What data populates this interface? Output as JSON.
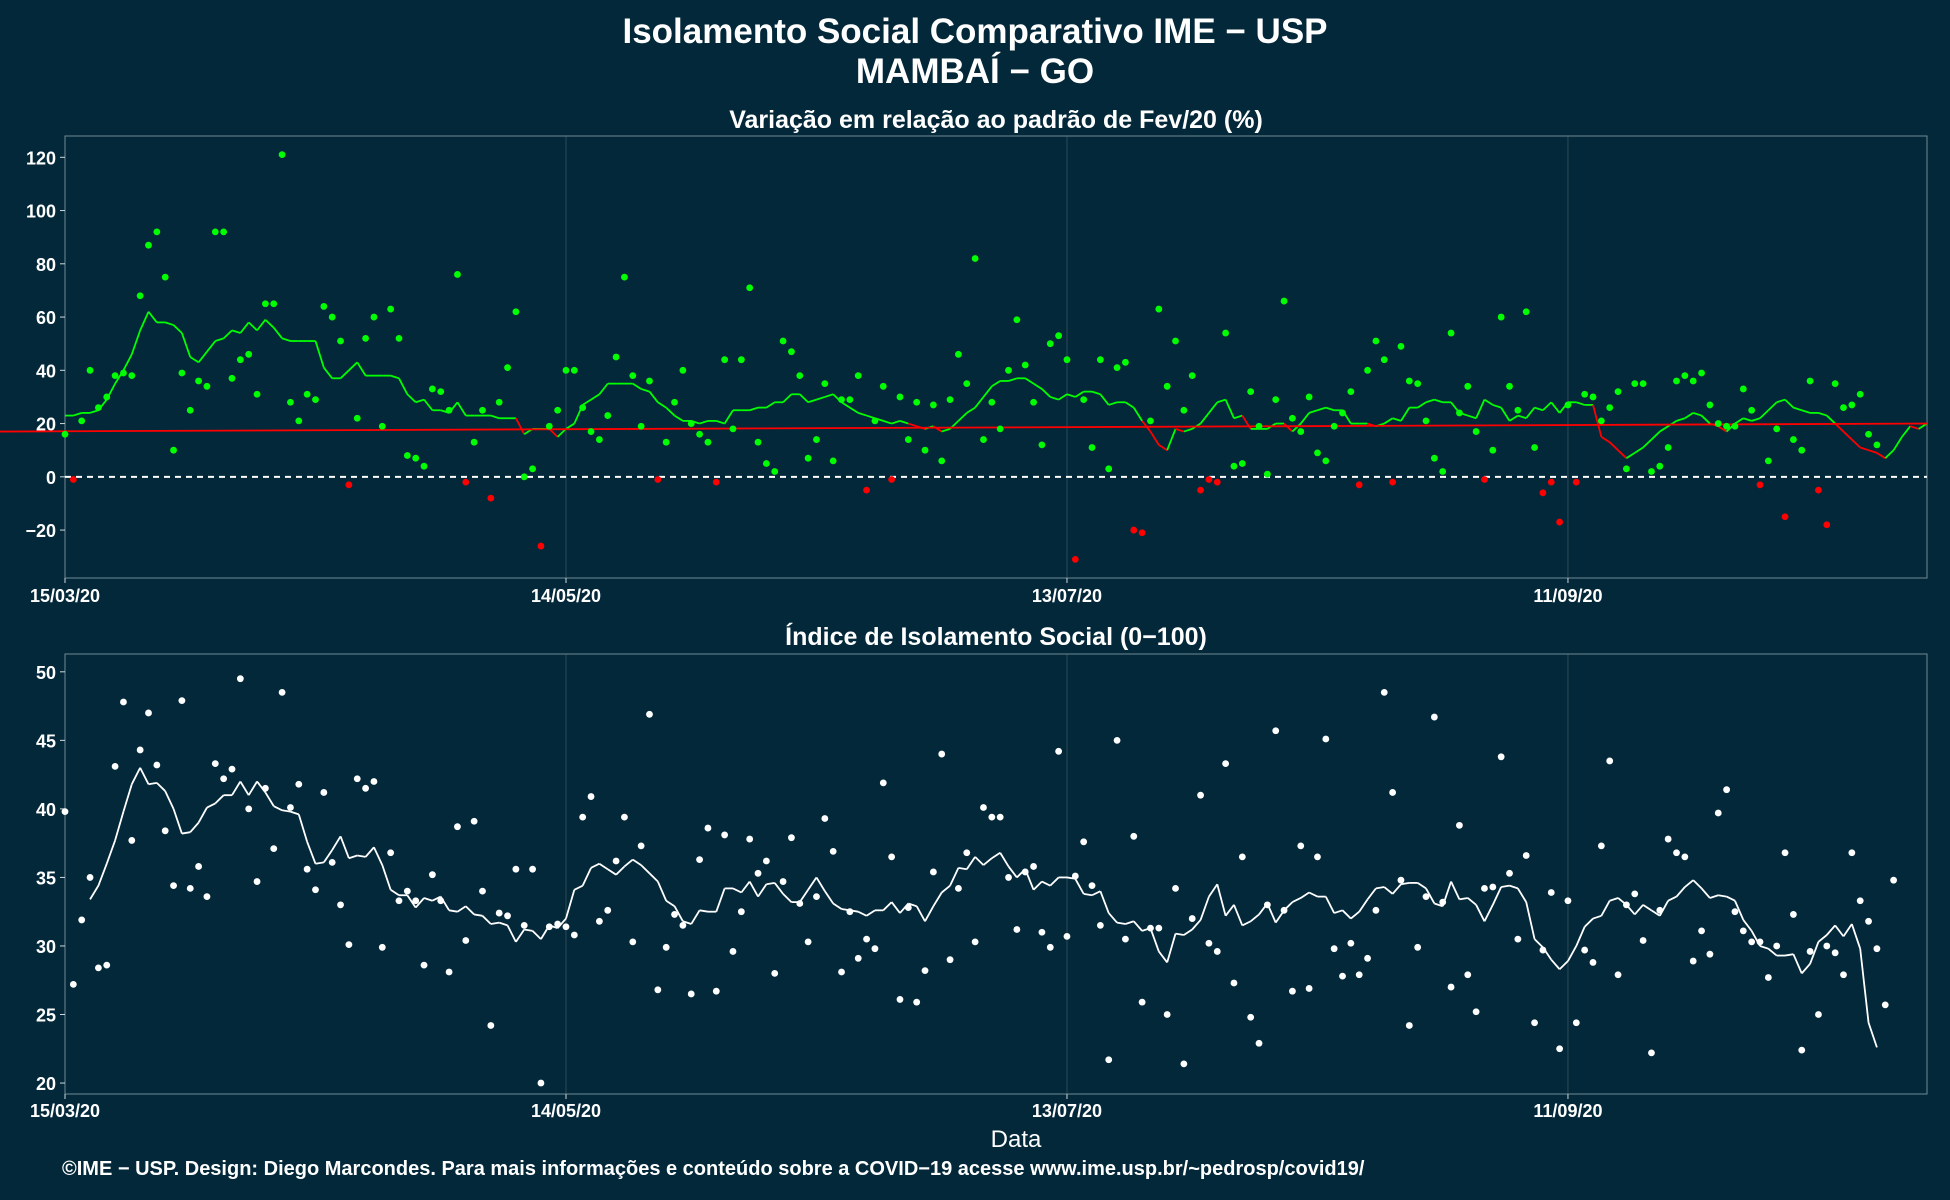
{
  "header": {
    "title_line1": "Isolamento Social Comparativo IME − USP",
    "title_line2": "MAMBAÍ − GO"
  },
  "footer": {
    "text": "©IME − USP. Design: Diego Marcondes. Para mais informações e conteúdo sobre a COVID−19 acesse www.ime.usp.br/~pedrosp/covid19/"
  },
  "colors": {
    "background": "#03283a",
    "positive": "#00ff00",
    "negative": "#ff0000",
    "index": "#ffffff",
    "grid": "#2c4a56"
  },
  "chart_data": [
    {
      "type": "scatter",
      "subtitle": "Variação em relação ao padrão de Fev/20 (%)",
      "xlabel": "",
      "x_ticks": [
        "15/03/20",
        "14/05/20",
        "13/07/20",
        "11/09/20"
      ],
      "x_tick_days": [
        0,
        60,
        120,
        180
      ],
      "xlim_days": [
        0,
        223
      ],
      "y_ticks": [
        120,
        100,
        80,
        60,
        40,
        20,
        0,
        -20
      ],
      "ylim": [
        -38,
        128
      ],
      "reference_line": 0,
      "point_days": [
        0,
        1,
        2,
        3,
        4,
        5,
        6,
        7,
        8,
        9,
        10,
        11,
        12,
        13,
        14,
        15,
        16,
        17,
        18,
        19,
        20,
        21,
        22,
        23,
        24,
        25,
        26,
        27,
        28,
        29,
        30,
        31,
        32,
        33,
        34,
        35,
        36,
        37,
        38,
        39,
        40,
        41,
        42,
        43,
        44,
        45,
        46,
        47,
        48,
        49,
        50,
        51,
        52,
        53,
        54,
        55,
        56,
        57,
        58,
        59,
        60,
        61,
        62,
        63,
        64,
        65,
        66,
        67,
        68,
        69,
        70,
        71,
        72,
        73,
        74,
        75,
        76,
        77,
        78,
        79,
        80,
        81,
        82,
        83,
        84,
        85,
        86,
        87,
        88,
        89,
        90,
        91,
        92,
        93,
        94,
        95,
        96,
        97,
        98,
        99,
        100,
        101,
        102,
        103,
        104,
        105,
        106,
        107,
        108,
        109,
        110,
        111,
        112,
        113,
        114,
        115,
        116,
        117,
        118,
        119,
        120,
        121,
        122,
        123,
        124,
        125,
        126,
        127,
        128,
        129,
        130,
        131,
        132,
        133,
        134,
        135,
        136,
        137,
        138,
        139,
        140,
        141,
        142,
        143,
        144,
        145,
        146,
        147,
        148,
        149,
        150,
        151,
        152,
        153,
        154,
        155,
        156,
        157,
        158,
        159,
        160,
        161,
        162,
        163,
        164,
        165,
        166,
        167,
        168,
        169,
        170,
        171,
        172,
        173,
        174,
        175,
        176,
        177,
        178,
        179,
        180,
        181,
        182,
        183,
        184,
        185,
        186,
        187,
        188,
        189,
        190,
        191,
        192,
        193,
        194,
        195,
        196,
        197,
        198,
        199,
        200,
        201,
        202,
        203,
        204,
        205,
        206,
        207,
        208,
        209,
        210,
        211,
        212,
        213,
        214,
        215,
        216,
        217,
        218,
        219,
        220,
        221,
        222,
        223
      ],
      "point_values": [
        16,
        -1,
        21,
        40,
        26,
        30,
        38,
        39,
        38,
        68,
        87,
        92,
        75,
        10,
        39,
        25,
        36,
        34,
        92,
        92,
        37,
        44,
        46,
        31,
        65,
        65,
        121,
        28,
        21,
        31,
        29,
        64,
        60,
        51,
        -3,
        22,
        52,
        60,
        19,
        63,
        52,
        8,
        7,
        4,
        33,
        32,
        25,
        76,
        -2,
        13,
        25,
        -8,
        28,
        41,
        62,
        0,
        3,
        -26,
        19,
        25,
        40,
        40,
        26,
        17,
        14,
        23,
        45,
        75,
        38,
        19,
        36,
        -1,
        13,
        28,
        40,
        20,
        16,
        13,
        -2,
        44,
        18,
        44,
        71,
        13,
        5,
        2,
        51,
        47,
        38,
        7,
        14,
        35,
        6,
        29,
        29,
        38,
        -5,
        21,
        34,
        -1,
        30,
        14,
        28,
        10,
        27,
        6,
        29,
        46,
        35,
        82,
        14,
        28,
        18,
        40,
        59,
        42,
        28,
        12,
        50,
        53,
        44,
        -31,
        29,
        11,
        44,
        3,
        41,
        43,
        -20,
        -21,
        21,
        63,
        34,
        51,
        25,
        38,
        -5,
        -1,
        -2,
        54,
        4,
        5,
        32,
        19,
        1,
        29,
        66,
        22,
        17,
        30,
        9,
        6,
        19,
        24,
        32,
        -3,
        40,
        51,
        44,
        -2,
        49,
        36,
        35,
        21,
        7,
        2,
        54,
        24,
        34,
        17,
        -1,
        10,
        60,
        34,
        25,
        62,
        11,
        -6,
        -2,
        -17,
        27,
        -2,
        31,
        30,
        21,
        26,
        32,
        3,
        35,
        35,
        2,
        4,
        11,
        36,
        38,
        36,
        39,
        27,
        20,
        19,
        19,
        33,
        25,
        -3,
        6,
        18,
        -15,
        14,
        10,
        36,
        -5,
        -18,
        35,
        26,
        27,
        31,
        16,
        12
      ],
      "moving_average": [
        23,
        23,
        24,
        24,
        25,
        29,
        35,
        40,
        46,
        55,
        62,
        58,
        58,
        57,
        54,
        45,
        43,
        47,
        51,
        52,
        55,
        54,
        58,
        55,
        59,
        56,
        52,
        51,
        51,
        51,
        51,
        41,
        37,
        37,
        40,
        43,
        38,
        38,
        38,
        38,
        37,
        31,
        28,
        29,
        25,
        25,
        24,
        28,
        23,
        23,
        23,
        23,
        22,
        22,
        22,
        16,
        18,
        18,
        18,
        15,
        18,
        20,
        27,
        29,
        31,
        35,
        35,
        35,
        35,
        33,
        32,
        28,
        26,
        23,
        21,
        21,
        20,
        21,
        21,
        20,
        25,
        25,
        25,
        26,
        26,
        28,
        28,
        31,
        31,
        28,
        29,
        30,
        31,
        28,
        26,
        24,
        23,
        22,
        21,
        20,
        21,
        20,
        19,
        18,
        19,
        17,
        18,
        21,
        24,
        26,
        30,
        34,
        36,
        36,
        37,
        37,
        35,
        33,
        30,
        29,
        31,
        30,
        32,
        32,
        31,
        27,
        28,
        28,
        26,
        21,
        17,
        12,
        10,
        18,
        17,
        18,
        20,
        24,
        28,
        29,
        22,
        23,
        18,
        18,
        18,
        20,
        20,
        17,
        20,
        24,
        25,
        26,
        25,
        25,
        20,
        20,
        20,
        19,
        20,
        22,
        21,
        26,
        26,
        28,
        29,
        28,
        28,
        24,
        23,
        22,
        29,
        27,
        26,
        21,
        23,
        22,
        26,
        25,
        28,
        24,
        28,
        28,
        27,
        27,
        15,
        13,
        10,
        7,
        9,
        11,
        14,
        17,
        19,
        21,
        22,
        24,
        23,
        20,
        19,
        17,
        20,
        22,
        21,
        22,
        25,
        28,
        29,
        26,
        25,
        24,
        24,
        23,
        20,
        17,
        14,
        11,
        10,
        9,
        7,
        10,
        15,
        19,
        18,
        20,
        17,
        17
      ],
      "series": [
        {
          "name": "",
          "color_key": "positive"
        },
        {
          "name": "",
          "color_key": "negative"
        }
      ]
    },
    {
      "type": "scatter",
      "subtitle": "Índice de Isolamento Social (0−100)",
      "xlabel": "Data",
      "x_ticks": [
        "15/03/20",
        "14/05/20",
        "13/07/20",
        "11/09/20"
      ],
      "x_tick_days": [
        0,
        60,
        120,
        180
      ],
      "xlim_days": [
        0,
        223
      ],
      "y_ticks": [
        50,
        45,
        40,
        35,
        30,
        25,
        20
      ],
      "ylim": [
        19.2,
        51.3
      ],
      "point_days": [
        0,
        1,
        2,
        3,
        4,
        5,
        6,
        7,
        8,
        9,
        10,
        11,
        12,
        13,
        14,
        15,
        16,
        17,
        18,
        19,
        20,
        21,
        22,
        23,
        24,
        25,
        26,
        27,
        28,
        29,
        30,
        31,
        32,
        33,
        34,
        35,
        36,
        37,
        38,
        39,
        40,
        41,
        42,
        43,
        44,
        45,
        46,
        47,
        48,
        49,
        50,
        51,
        52,
        53,
        54,
        55,
        56,
        57,
        58,
        59,
        60,
        61,
        62,
        63,
        64,
        65,
        66,
        67,
        68,
        69,
        70,
        71,
        72,
        73,
        74,
        75,
        76,
        77,
        78,
        79,
        80,
        81,
        82,
        83,
        84,
        85,
        86,
        87,
        88,
        89,
        90,
        91,
        92,
        93,
        94,
        95,
        96,
        97,
        98,
        99,
        100,
        101,
        102,
        103,
        104,
        105,
        106,
        107,
        108,
        109,
        110,
        111,
        112,
        113,
        114,
        115,
        116,
        117,
        118,
        119,
        120,
        121,
        122,
        123,
        124,
        125,
        126,
        127,
        128,
        129,
        130,
        131,
        132,
        133,
        134,
        135,
        136,
        137,
        138,
        139,
        140,
        141,
        142,
        143,
        144,
        145,
        146,
        147,
        148,
        149,
        150,
        151,
        152,
        153,
        154,
        155,
        156,
        157,
        158,
        159,
        160,
        161,
        162,
        163,
        164,
        165,
        166,
        167,
        168,
        169,
        170,
        171,
        172,
        173,
        174,
        175,
        176,
        177,
        178,
        179,
        180,
        181,
        182,
        183,
        184,
        185,
        186,
        187,
        188,
        189,
        190,
        191,
        192,
        193,
        194,
        195,
        196,
        197,
        198,
        199,
        200,
        201,
        202,
        203,
        204,
        205,
        206,
        207,
        208,
        209,
        210,
        211,
        212,
        213,
        214,
        215,
        216,
        217,
        218,
        219,
        220,
        221,
        222,
        223
      ],
      "point_values": [
        39.8,
        27.2,
        31.9,
        35.0,
        28.4,
        28.6,
        43.1,
        47.8,
        37.7,
        44.3,
        47.0,
        43.2,
        38.4,
        34.4,
        47.9,
        34.2,
        35.8,
        33.6,
        43.3,
        42.2,
        42.9,
        49.5,
        40.0,
        34.7,
        41.5,
        37.1,
        48.5,
        40.1,
        41.8,
        35.6,
        34.1,
        41.2,
        36.1,
        33.0,
        30.1,
        42.2,
        41.5,
        42.0,
        29.9,
        36.8,
        33.3,
        34.0,
        33.3,
        28.6,
        35.2,
        33.3,
        28.1,
        38.7,
        30.4,
        39.1,
        34.0,
        24.2,
        32.4,
        32.2,
        35.6,
        31.5,
        35.6,
        20.0,
        31.4,
        31.6,
        31.4,
        30.8,
        39.4,
        40.9,
        31.8,
        32.6,
        36.2,
        39.4,
        30.3,
        37.3,
        46.9,
        26.8,
        29.9,
        32.3,
        31.5,
        26.5,
        36.3,
        38.6,
        26.7,
        38.1,
        29.6,
        32.5,
        37.8,
        35.3,
        36.2,
        28.0,
        34.7,
        37.9,
        33.1,
        30.3,
        33.6,
        39.3,
        36.9,
        28.1,
        32.5,
        29.1,
        30.5,
        29.8,
        41.9,
        36.5,
        26.1,
        32.8,
        25.9,
        28.2,
        35.4,
        44.0,
        29.0,
        34.2,
        36.8,
        30.3,
        40.1,
        39.4,
        39.4,
        35.0,
        31.2,
        35.4,
        35.8,
        31.0,
        29.9,
        44.2,
        30.7,
        35.1,
        37.6,
        34.4,
        31.5,
        21.7,
        45.0,
        30.5,
        38.0,
        25.9,
        31.3,
        31.3,
        25.0,
        34.2,
        21.4,
        32.0,
        41.0,
        30.2,
        29.6,
        43.3,
        27.3,
        36.5,
        24.8,
        22.9,
        33.0,
        45.7,
        32.6,
        26.7,
        37.3,
        26.9,
        36.5,
        45.1,
        29.8,
        27.8,
        30.2,
        27.9,
        29.1,
        32.6,
        48.5,
        41.2,
        34.8,
        24.2,
        29.9,
        33.6,
        46.7,
        33.2,
        27.0,
        38.8,
        27.9,
        25.2,
        34.2,
        34.3,
        43.8,
        35.3,
        30.5,
        36.6,
        24.4,
        29.7,
        33.9,
        22.5,
        33.3,
        24.4,
        29.7,
        28.8,
        37.3,
        43.5,
        27.9,
        33.0,
        33.8,
        30.4,
        22.2,
        32.6,
        37.8,
        36.8,
        36.5,
        28.9,
        31.1,
        29.4,
        39.7,
        41.4,
        32.5,
        31.1,
        30.3,
        30.3,
        27.7,
        30.0,
        36.8,
        32.3,
        22.4,
        29.6,
        25.0,
        30.0,
        29.5,
        27.9,
        36.8,
        33.3,
        31.8,
        29.8,
        25.7,
        34.8
      ],
      "moving_average": [
        null,
        null,
        null,
        33.4,
        34.4,
        36.0,
        37.7,
        39.8,
        41.8,
        43.0,
        41.8,
        41.9,
        41.3,
        40.0,
        38.2,
        38.3,
        39.0,
        40.1,
        40.4,
        41.0,
        41.0,
        42.0,
        41.0,
        42.0,
        41.2,
        40.2,
        39.9,
        39.8,
        39.6,
        37.6,
        36.0,
        36.1,
        37.0,
        38.0,
        36.4,
        36.6,
        36.5,
        37.2,
        35.9,
        34.1,
        33.7,
        33.7,
        32.8,
        33.5,
        33.3,
        33.6,
        32.6,
        32.5,
        32.9,
        32.3,
        32.2,
        31.6,
        31.7,
        31.5,
        30.3,
        31.2,
        31.1,
        30.5,
        31.5,
        31.3,
        32.0,
        34.1,
        34.4,
        35.7,
        36.0,
        35.6,
        35.2,
        35.8,
        36.3,
        35.9,
        35.3,
        34.7,
        33.3,
        32.9,
        31.8,
        31.6,
        32.6,
        32.5,
        32.5,
        34.2,
        34.2,
        33.9,
        34.7,
        33.6,
        34.5,
        34.6,
        33.8,
        33.2,
        33.2,
        34.1,
        35.0,
        34.0,
        33.1,
        32.7,
        32.6,
        32.5,
        32.2,
        32.6,
        32.6,
        33.2,
        32.4,
        33.1,
        32.9,
        31.8,
        32.9,
        33.9,
        34.4,
        35.7,
        35.6,
        36.5,
        35.9,
        36.4,
        36.8,
        35.8,
        35.0,
        35.6,
        34.1,
        34.7,
        34.4,
        35.0,
        35.0,
        34.9,
        33.8,
        33.7,
        34.0,
        32.4,
        31.7,
        31.6,
        31.8,
        31.1,
        31.3,
        29.6,
        28.8,
        30.9,
        30.8,
        31.2,
        31.9,
        33.6,
        34.5,
        32.2,
        33.0,
        31.5,
        31.8,
        32.3,
        33.1,
        31.7,
        32.6,
        33.2,
        33.5,
        33.9,
        33.6,
        33.6,
        32.4,
        32.6,
        32.0,
        32.5,
        33.4,
        34.2,
        34.3,
        33.8,
        34.5,
        34.6,
        34.6,
        34.2,
        33.1,
        32.9,
        34.7,
        33.4,
        33.5,
        33.0,
        31.8,
        33.0,
        34.3,
        34.4,
        34.2,
        33.2,
        30.5,
        29.9,
        29.0,
        28.3,
        28.9,
        30.0,
        31.4,
        32.0,
        32.2,
        33.3,
        33.5,
        33.0,
        32.3,
        33.0,
        32.6,
        32.2,
        33.3,
        33.6,
        34.3,
        34.8,
        34.2,
        33.5,
        33.7,
        33.6,
        33.3,
        31.9,
        31.1,
        30.0,
        29.8,
        29.3,
        29.3,
        29.4,
        28.0,
        28.7,
        30.3,
        30.8,
        31.5,
        30.7,
        31.6,
        29.8,
        24.4,
        22.6
      ]
    }
  ]
}
